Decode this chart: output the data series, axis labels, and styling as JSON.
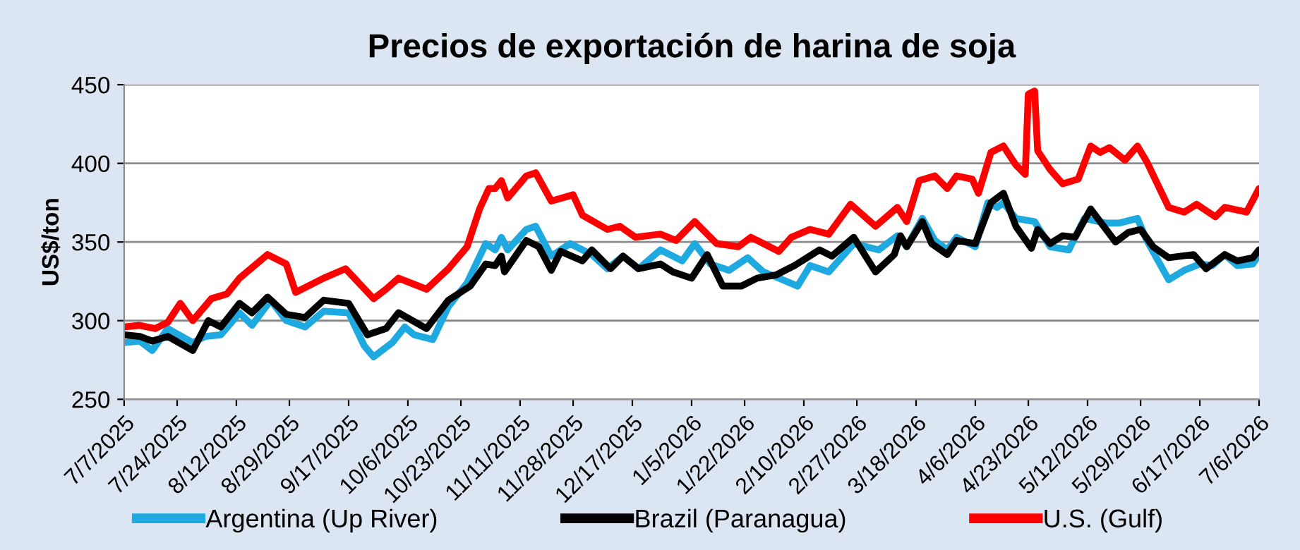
{
  "chart_data": {
    "type": "line",
    "title": "Precios de exportación de harina de soja",
    "ylabel": "US$/ton",
    "ylim": [
      250,
      450
    ],
    "yticks": [
      250,
      300,
      350,
      400,
      450
    ],
    "grid": "y",
    "legend": "bottom",
    "marker": "none",
    "line_style": "solid",
    "xlim": [
      "2025-07-07",
      "2026-07-06"
    ],
    "xticks": [
      {
        "value": "2025-07-07",
        "label": "7/7/2025"
      },
      {
        "value": "2025-07-24",
        "label": "7/24/2025"
      },
      {
        "value": "2025-08-12",
        "label": "8/12/2025"
      },
      {
        "value": "2025-08-29",
        "label": "8/29/2025"
      },
      {
        "value": "2025-09-17",
        "label": "9/17/2025"
      },
      {
        "value": "2025-10-06",
        "label": "10/6/2025"
      },
      {
        "value": "2025-10-23",
        "label": "10/23/2025"
      },
      {
        "value": "2025-11-11",
        "label": "11/11/2025"
      },
      {
        "value": "2025-11-28",
        "label": "11/28/2025"
      },
      {
        "value": "2025-12-17",
        "label": "12/17/2025"
      },
      {
        "value": "2026-01-05",
        "label": "1/5/2026"
      },
      {
        "value": "2026-01-22",
        "label": "1/22/2026"
      },
      {
        "value": "2026-02-10",
        "label": "2/10/2026"
      },
      {
        "value": "2026-02-27",
        "label": "2/27/2026"
      },
      {
        "value": "2026-03-18",
        "label": "3/18/2026"
      },
      {
        "value": "2026-04-06",
        "label": "4/6/2026"
      },
      {
        "value": "2026-04-23",
        "label": "4/23/2026"
      },
      {
        "value": "2026-05-12",
        "label": "5/12/2026"
      },
      {
        "value": "2026-05-29",
        "label": "5/29/2026"
      },
      {
        "value": "2026-06-17",
        "label": "6/17/2026"
      },
      {
        "value": "2026-07-06",
        "label": "7/6/2026"
      }
    ],
    "series": [
      {
        "name": "Argentina (Up River)",
        "color": "#1fa9e1",
        "x": [
          "2025-07-07",
          "2025-07-12",
          "2025-07-16",
          "2025-07-21",
          "2025-07-29",
          "2025-08-02",
          "2025-08-07",
          "2025-08-13",
          "2025-08-17",
          "2025-08-23",
          "2025-08-28",
          "2025-09-03",
          "2025-09-09",
          "2025-09-17",
          "2025-09-22",
          "2025-09-25",
          "2025-10-01",
          "2025-10-05",
          "2025-10-08",
          "2025-10-14",
          "2025-10-19",
          "2025-10-25",
          "2025-10-31",
          "2025-11-03",
          "2025-11-05",
          "2025-11-07",
          "2025-11-13",
          "2025-11-16",
          "2025-11-21",
          "2025-11-27",
          "2025-12-04",
          "2025-12-09",
          "2025-12-14",
          "2025-12-19",
          "2025-12-26",
          "2026-01-02",
          "2026-01-06",
          "2026-01-11",
          "2026-01-17",
          "2026-01-23",
          "2026-01-28",
          "2026-02-02",
          "2026-02-08",
          "2026-02-12",
          "2026-02-18",
          "2026-02-26",
          "2026-03-06",
          "2026-03-12",
          "2026-03-15",
          "2026-03-20",
          "2026-03-24",
          "2026-03-28",
          "2026-03-31",
          "2026-04-06",
          "2026-04-10",
          "2026-04-13",
          "2026-04-15",
          "2026-04-19",
          "2026-04-25",
          "2026-04-30",
          "2026-05-06",
          "2026-05-11",
          "2026-05-18",
          "2026-05-22",
          "2026-05-28",
          "2026-05-31",
          "2026-06-07",
          "2026-06-12",
          "2026-06-17",
          "2026-06-21",
          "2026-06-25",
          "2026-06-29",
          "2026-07-04",
          "2026-07-06"
        ],
        "values": [
          286,
          287,
          281,
          295,
          286,
          290,
          291,
          305,
          297,
          313,
          300,
          296,
          306,
          305,
          284,
          277,
          286,
          296,
          291,
          288,
          309,
          324,
          349,
          345,
          353,
          345,
          358,
          360,
          341,
          349,
          342,
          333,
          341,
          333,
          345,
          338,
          349,
          336,
          332,
          340,
          331,
          327,
          322,
          335,
          331,
          349,
          345,
          354,
          347,
          365,
          351,
          345,
          353,
          347,
          375,
          372,
          375,
          365,
          363,
          347,
          345,
          365,
          362,
          362,
          365,
          351,
          326,
          332,
          336,
          335,
          342,
          335,
          336,
          342
        ]
      },
      {
        "name": "Brazil (Paranagua)",
        "color": "#000000",
        "x": [
          "2025-07-07",
          "2025-07-12",
          "2025-07-16",
          "2025-07-21",
          "2025-07-29",
          "2025-08-03",
          "2025-08-07",
          "2025-08-13",
          "2025-08-17",
          "2025-08-22",
          "2025-08-28",
          "2025-09-03",
          "2025-09-09",
          "2025-09-17",
          "2025-09-23",
          "2025-09-29",
          "2025-10-03",
          "2025-10-12",
          "2025-10-19",
          "2025-10-26",
          "2025-10-31",
          "2025-11-03",
          "2025-11-05",
          "2025-11-06",
          "2025-11-13",
          "2025-11-17",
          "2025-11-21",
          "2025-11-24",
          "2025-12-01",
          "2025-12-04",
          "2025-12-10",
          "2025-12-14",
          "2025-12-19",
          "2025-12-26",
          "2025-12-30",
          "2026-01-05",
          "2026-01-10",
          "2026-01-15",
          "2026-01-21",
          "2026-01-26",
          "2026-02-01",
          "2026-02-07",
          "2026-02-15",
          "2026-02-19",
          "2026-02-26",
          "2026-03-05",
          "2026-03-11",
          "2026-03-13",
          "2026-03-15",
          "2026-03-20",
          "2026-03-23",
          "2026-03-28",
          "2026-03-31",
          "2026-04-06",
          "2026-04-11",
          "2026-04-15",
          "2026-04-19",
          "2026-04-24",
          "2026-04-26",
          "2026-04-30",
          "2026-05-04",
          "2026-05-08",
          "2026-05-13",
          "2026-05-16",
          "2026-05-21",
          "2026-05-25",
          "2026-05-29",
          "2026-06-02",
          "2026-06-07",
          "2026-06-15",
          "2026-06-19",
          "2026-06-25",
          "2026-06-29",
          "2026-07-04",
          "2026-07-06"
        ],
        "values": [
          291,
          290,
          287,
          290,
          281,
          300,
          296,
          311,
          305,
          315,
          304,
          302,
          313,
          311,
          291,
          295,
          305,
          295,
          313,
          322,
          336,
          335,
          341,
          331,
          351,
          347,
          332,
          344,
          338,
          345,
          333,
          341,
          333,
          336,
          331,
          327,
          342,
          322,
          322,
          327,
          329,
          335,
          345,
          341,
          353,
          331,
          342,
          354,
          347,
          363,
          349,
          342,
          351,
          349,
          375,
          381,
          360,
          346,
          358,
          349,
          354,
          353,
          371,
          363,
          350,
          356,
          358,
          347,
          340,
          342,
          333,
          342,
          338,
          340,
          345
        ]
      },
      {
        "name": "U.S. (Gulf)",
        "color": "#ff0000",
        "x": [
          "2025-07-07",
          "2025-07-12",
          "2025-07-17",
          "2025-07-21",
          "2025-07-25",
          "2025-07-29",
          "2025-08-04",
          "2025-08-09",
          "2025-08-13",
          "2025-08-22",
          "2025-08-28",
          "2025-08-31",
          "2025-09-09",
          "2025-09-16",
          "2025-09-25",
          "2025-09-29",
          "2025-10-03",
          "2025-10-12",
          "2025-10-19",
          "2025-10-25",
          "2025-10-29",
          "2025-11-01",
          "2025-11-03",
          "2025-11-05",
          "2025-11-07",
          "2025-11-13",
          "2025-11-16",
          "2025-11-21",
          "2025-11-28",
          "2025-12-01",
          "2025-12-09",
          "2025-12-13",
          "2025-12-18",
          "2025-12-26",
          "2025-12-31",
          "2026-01-06",
          "2026-01-13",
          "2026-01-20",
          "2026-01-24",
          "2026-01-28",
          "2026-02-02",
          "2026-02-06",
          "2026-02-12",
          "2026-02-18",
          "2026-02-25",
          "2026-03-05",
          "2026-03-12",
          "2026-03-15",
          "2026-03-19",
          "2026-03-24",
          "2026-03-28",
          "2026-03-31",
          "2026-04-05",
          "2026-04-07",
          "2026-04-11",
          "2026-04-15",
          "2026-04-19",
          "2026-04-22",
          "2026-04-23",
          "2026-04-25",
          "2026-04-26",
          "2026-04-30",
          "2026-05-04",
          "2026-05-09",
          "2026-05-13",
          "2026-05-16",
          "2026-05-19",
          "2026-05-24",
          "2026-05-28",
          "2026-05-31",
          "2026-06-07",
          "2026-06-12",
          "2026-06-16",
          "2026-06-22",
          "2026-06-25",
          "2026-07-02",
          "2026-07-06"
        ],
        "values": [
          296,
          297,
          295,
          299,
          311,
          300,
          314,
          317,
          327,
          342,
          336,
          318,
          327,
          333,
          314,
          320,
          327,
          320,
          333,
          347,
          371,
          384,
          384,
          389,
          378,
          392,
          394,
          376,
          380,
          367,
          358,
          360,
          353,
          355,
          351,
          363,
          349,
          347,
          353,
          349,
          344,
          353,
          358,
          355,
          374,
          360,
          372,
          363,
          389,
          392,
          384,
          392,
          390,
          381,
          407,
          411,
          399,
          393,
          444,
          446,
          408,
          396,
          387,
          390,
          411,
          407,
          410,
          402,
          411,
          401,
          372,
          369,
          374,
          366,
          372,
          369,
          384
        ]
      }
    ]
  }
}
